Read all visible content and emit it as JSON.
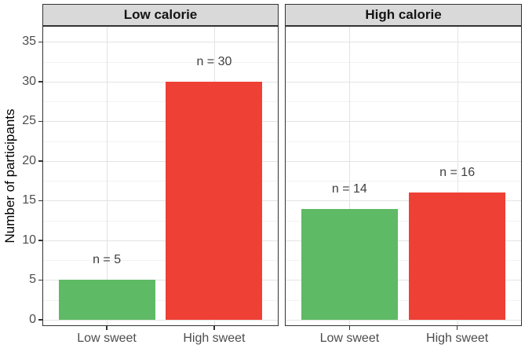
{
  "chart_data": {
    "type": "bar",
    "title": "",
    "xlabel": "",
    "ylabel": "Number of participants",
    "yticks": [
      0,
      5,
      10,
      15,
      20,
      25,
      30,
      35
    ],
    "ylim": [
      0,
      37
    ],
    "grid": "horizontal major+minor, vertical major at category centers",
    "legend_position": "none",
    "categories": [
      "Low sweet",
      "High sweet"
    ],
    "facets": [
      {
        "label": "Low calorie",
        "categories": [
          "Low sweet",
          "High sweet"
        ],
        "values": [
          5,
          30
        ],
        "bar_labels": [
          "n = 5",
          "n = 30"
        ],
        "colors": [
          "#5eba64",
          "#ef4035"
        ]
      },
      {
        "label": "High calorie",
        "categories": [
          "Low sweet",
          "High sweet"
        ],
        "values": [
          14,
          16
        ],
        "bar_labels": [
          "n = 14",
          "n = 16"
        ],
        "colors": [
          "#5eba64",
          "#ef4035"
        ]
      }
    ],
    "colors": {
      "bar_green": "#5eba64",
      "bar_red": "#ef4035",
      "strip_bg": "#d9d9d9",
      "panel_border": "#333333",
      "grid_major": "#e3e3e3",
      "grid_minor": "#f2f2f2",
      "axis_text": "#4d4d4d",
      "bar_label_text": "#3f3f3f",
      "background": "#ffffff"
    }
  }
}
